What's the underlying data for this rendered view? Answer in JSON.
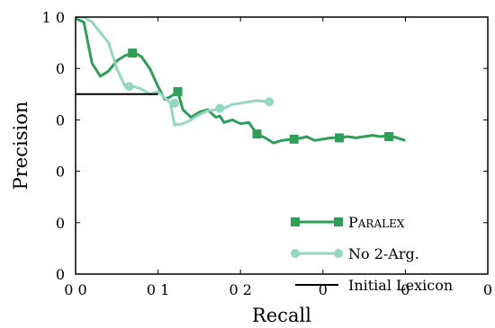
{
  "chart_data": {
    "type": "line",
    "xlabel": "Recall",
    "ylabel": "Precision",
    "xlim": [
      0.0,
      0.5
    ],
    "ylim": [
      0.0,
      1.0
    ],
    "x_ticks": [
      0.0,
      0.1,
      0.2,
      0.3,
      0.4,
      0.5
    ],
    "y_ticks": [
      0.0,
      0.2,
      0.4,
      0.6,
      0.8,
      1.0
    ],
    "x_tick_labels": [
      "0 0",
      "0 1",
      "0 2",
      "0",
      "0",
      "0"
    ],
    "y_tick_labels": [
      "0",
      "0",
      "0",
      "0",
      "0",
      "1 0"
    ],
    "grid": false,
    "legend_position": "lower-right",
    "legend_entries": [
      "Paralex",
      "No 2-Arg.",
      "Initial Lexicon"
    ],
    "series": [
      {
        "name": "Paralex",
        "color": "#2e9e58",
        "marker": "square",
        "points": [
          [
            0.0,
            1.0
          ],
          [
            0.003,
            0.99
          ],
          [
            0.01,
            0.98
          ],
          [
            0.02,
            0.82
          ],
          [
            0.03,
            0.77
          ],
          [
            0.04,
            0.79
          ],
          [
            0.05,
            0.83
          ],
          [
            0.06,
            0.85
          ],
          [
            0.069,
            0.86
          ],
          [
            0.075,
            0.855
          ],
          [
            0.08,
            0.845
          ],
          [
            0.09,
            0.8
          ],
          [
            0.1,
            0.73
          ],
          [
            0.108,
            0.68
          ],
          [
            0.115,
            0.69
          ],
          [
            0.124,
            0.71
          ],
          [
            0.13,
            0.64
          ],
          [
            0.14,
            0.61
          ],
          [
            0.15,
            0.63
          ],
          [
            0.16,
            0.64
          ],
          [
            0.17,
            0.61
          ],
          [
            0.175,
            0.615
          ],
          [
            0.18,
            0.59
          ],
          [
            0.19,
            0.6
          ],
          [
            0.2,
            0.585
          ],
          [
            0.21,
            0.59
          ],
          [
            0.22,
            0.545
          ],
          [
            0.23,
            0.53
          ],
          [
            0.24,
            0.51
          ],
          [
            0.25,
            0.52
          ],
          [
            0.265,
            0.525
          ],
          [
            0.275,
            0.53
          ],
          [
            0.28,
            0.535
          ],
          [
            0.29,
            0.52
          ],
          [
            0.3,
            0.525
          ],
          [
            0.31,
            0.53
          ],
          [
            0.32,
            0.53
          ],
          [
            0.33,
            0.535
          ],
          [
            0.34,
            0.53
          ],
          [
            0.35,
            0.535
          ],
          [
            0.36,
            0.54
          ],
          [
            0.37,
            0.535
          ],
          [
            0.38,
            0.54
          ],
          [
            0.39,
            0.53
          ],
          [
            0.4,
            0.52
          ]
        ],
        "marker_points": [
          [
            0.069,
            0.86
          ],
          [
            0.124,
            0.71
          ],
          [
            0.22,
            0.545
          ],
          [
            0.265,
            0.525
          ],
          [
            0.32,
            0.53
          ],
          [
            0.38,
            0.535
          ]
        ]
      },
      {
        "name": "No 2-Arg.",
        "color": "#95d6c2",
        "marker": "circle",
        "points": [
          [
            0.0,
            1.0
          ],
          [
            0.01,
            1.0
          ],
          [
            0.02,
            0.98
          ],
          [
            0.03,
            0.94
          ],
          [
            0.04,
            0.9
          ],
          [
            0.05,
            0.8
          ],
          [
            0.06,
            0.73
          ],
          [
            0.07,
            0.73
          ],
          [
            0.08,
            0.72
          ],
          [
            0.09,
            0.7
          ],
          [
            0.1,
            0.71
          ],
          [
            0.11,
            0.68
          ],
          [
            0.115,
            0.665
          ],
          [
            0.12,
            0.58
          ],
          [
            0.13,
            0.585
          ],
          [
            0.14,
            0.6
          ],
          [
            0.15,
            0.62
          ],
          [
            0.16,
            0.635
          ],
          [
            0.17,
            0.64
          ],
          [
            0.18,
            0.645
          ],
          [
            0.19,
            0.66
          ],
          [
            0.2,
            0.665
          ],
          [
            0.21,
            0.67
          ],
          [
            0.22,
            0.675
          ],
          [
            0.235,
            0.67
          ]
        ],
        "marker_points": [
          [
            0.065,
            0.73
          ],
          [
            0.12,
            0.665
          ],
          [
            0.175,
            0.645
          ],
          [
            0.235,
            0.67
          ]
        ]
      },
      {
        "name": "Initial Lexicon",
        "color": "#000000",
        "marker": "none",
        "points": [
          [
            0.0,
            0.7
          ],
          [
            0.1,
            0.7
          ]
        ],
        "marker_points": []
      }
    ]
  }
}
